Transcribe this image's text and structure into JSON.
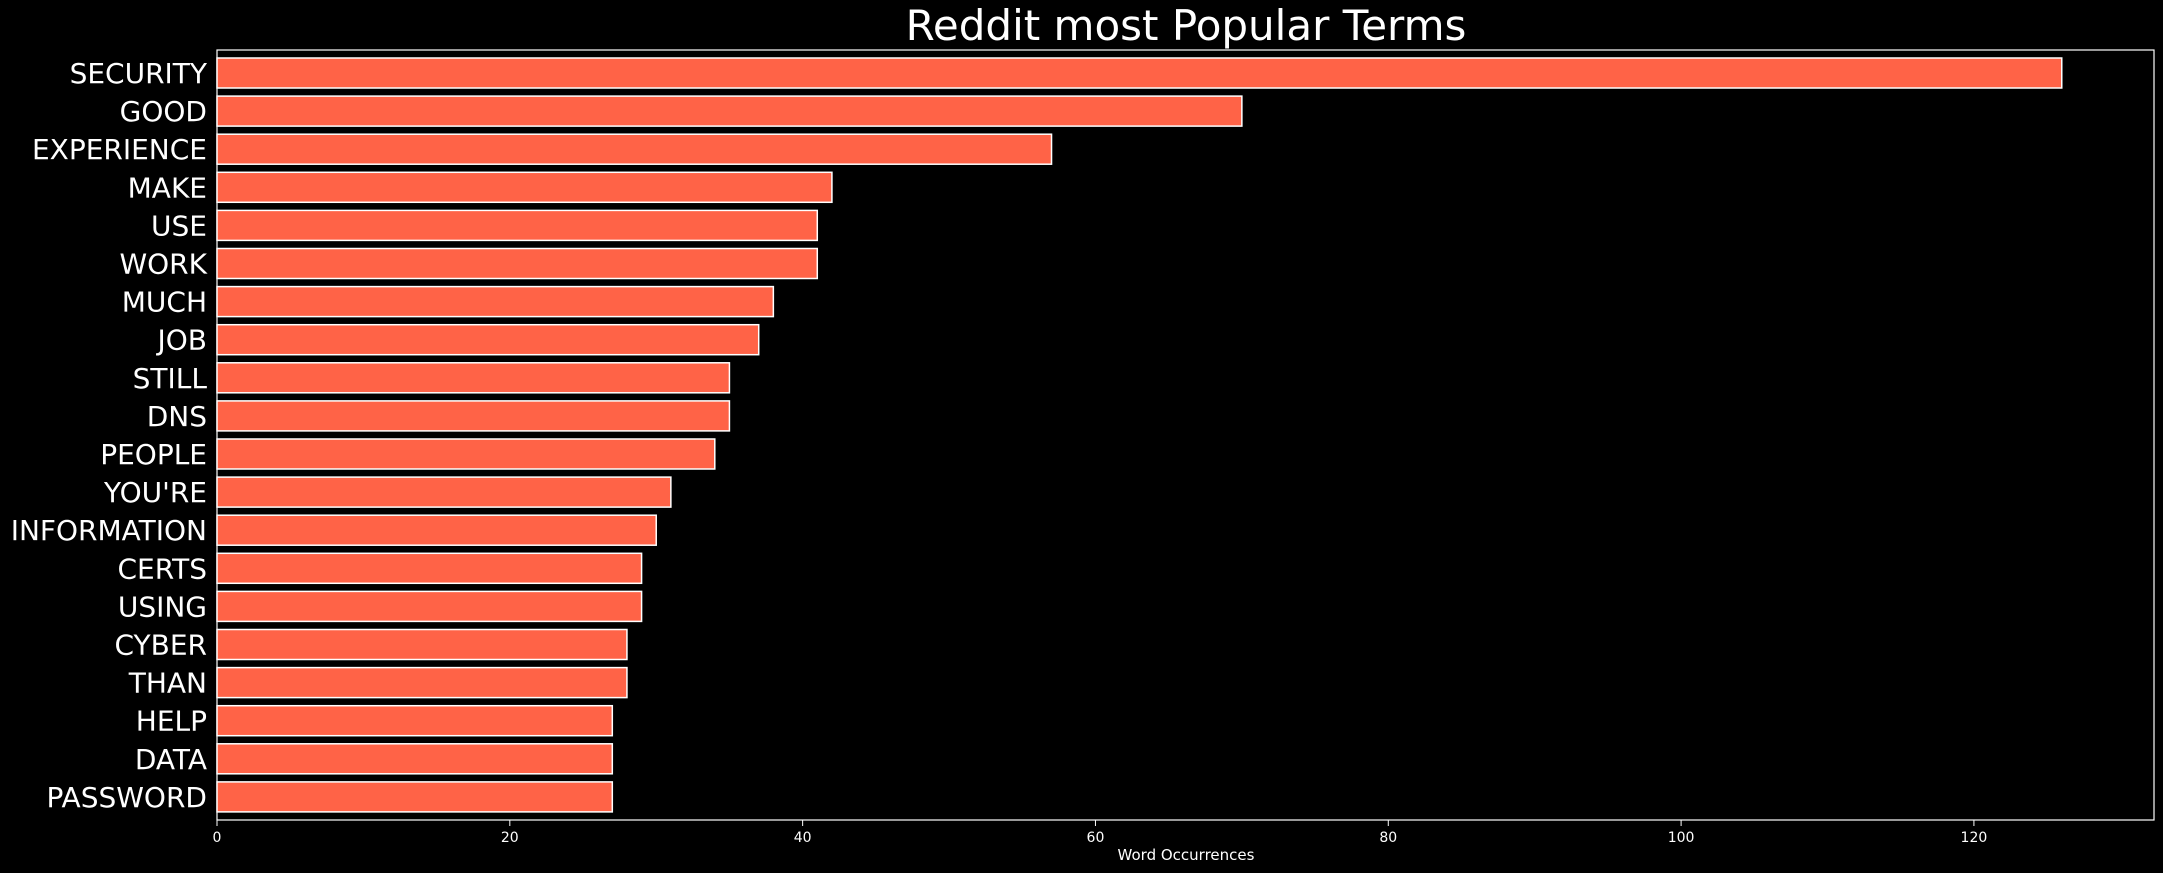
{
  "chart_data": {
    "type": "bar",
    "orientation": "horizontal",
    "title": "Reddit most Popular Terms",
    "xlabel": "Word Occurrences",
    "ylabel": "",
    "categories": [
      "SECURITY",
      "GOOD",
      "EXPERIENCE",
      "MAKE",
      "USE",
      "WORK",
      "MUCH",
      "JOB",
      "STILL",
      "DNS",
      "PEOPLE",
      "YOU'RE",
      "INFORMATION",
      "CERTS",
      "USING",
      "CYBER",
      "THAN",
      "HELP",
      "DATA",
      "PASSWORD"
    ],
    "values": [
      126,
      70,
      57,
      42,
      41,
      41,
      38,
      37,
      35,
      35,
      34,
      31,
      30,
      29,
      29,
      28,
      28,
      27,
      27,
      27
    ],
    "xlim": [
      0,
      132.3
    ],
    "xticks": [
      0,
      20,
      40,
      60,
      80,
      100,
      120
    ],
    "grid": false,
    "legend": "none",
    "colors": {
      "background": "#000000",
      "bar_fill": "#ff6347",
      "bar_edge": "#ffffff",
      "text": "#ffffff",
      "axis": "#ffffff"
    }
  }
}
